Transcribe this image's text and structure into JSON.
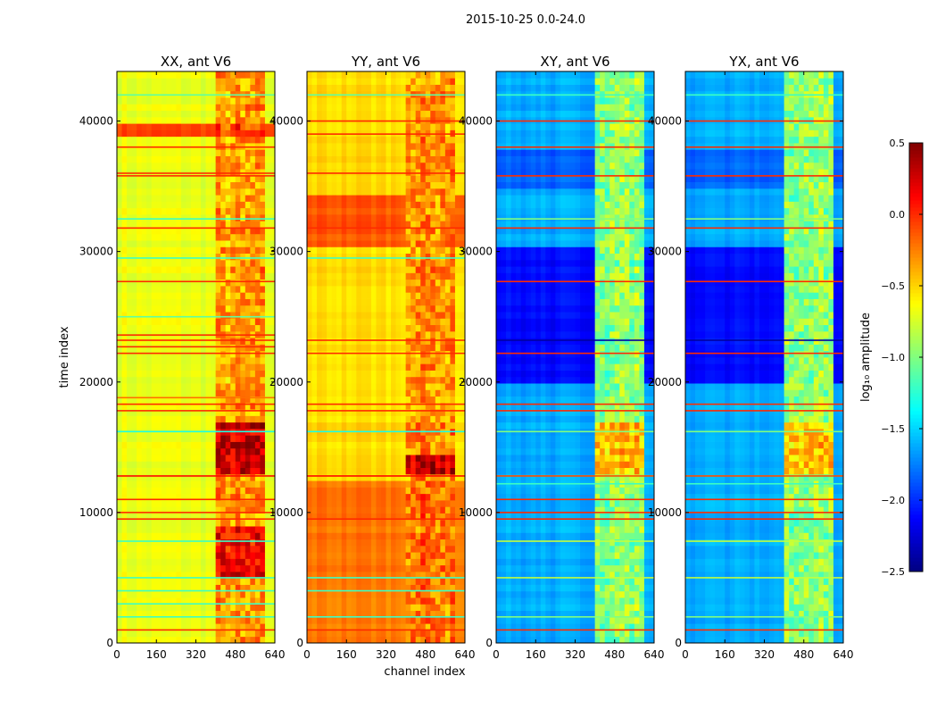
{
  "chart_data": {
    "type": "heatmap",
    "title": "2015-10-25 0.0-24.0",
    "xlabel": "channel index",
    "ylabel": "time index",
    "xlim": [
      0,
      640
    ],
    "ylim": [
      0,
      43800
    ],
    "xticks": [
      "0",
      "160",
      "320",
      "480",
      "640"
    ],
    "xtick_values": [
      0,
      160,
      320,
      480,
      640
    ],
    "yticks": [
      "0",
      "10000",
      "20000",
      "30000",
      "40000"
    ],
    "ytick_values": [
      0,
      10000,
      20000,
      30000,
      40000
    ],
    "colorbar": {
      "label": "log₁₀ amplitude",
      "range": [
        -2.5,
        0.5
      ],
      "ticks": [
        "0.5",
        "0.0",
        "−0.5",
        "−1.0",
        "−1.5",
        "−2.0",
        "−2.5"
      ],
      "tick_values": [
        0.5,
        0.0,
        -0.5,
        -1.0,
        -1.5,
        -2.0,
        -2.5
      ],
      "colormap": "jet"
    },
    "panels": [
      {
        "title": "XX, ant V6",
        "base": -0.68,
        "regions": [
          {
            "t": [
              0,
              43800
            ],
            "ch": [
              400,
              600
            ],
            "v": -0.35
          },
          {
            "t": [
              5000,
              9000
            ],
            "ch": [
              400,
              600
            ],
            "v": 0.1
          },
          {
            "t": [
              13000,
              17000
            ],
            "ch": [
              400,
              600
            ],
            "v": 0.25
          },
          {
            "t": [
              38800,
              40000
            ],
            "ch": [
              0,
              640
            ],
            "v": -0.05
          }
        ],
        "lines": [
          {
            "t": 1000,
            "v": 0.0
          },
          {
            "t": 9500,
            "v": 0.0
          },
          {
            "t": 10000,
            "v": 0.0
          },
          {
            "t": 11000,
            "v": 0.0
          },
          {
            "t": 12800,
            "v": 0.1
          },
          {
            "t": 17800,
            "v": 0.0
          },
          {
            "t": 18300,
            "v": 0.0
          },
          {
            "t": 18800,
            "v": -0.2
          },
          {
            "t": 22200,
            "v": 0.0
          },
          {
            "t": 22700,
            "v": 0.0
          },
          {
            "t": 23200,
            "v": 0.0
          },
          {
            "t": 23600,
            "v": 0.0
          },
          {
            "t": 27700,
            "v": 0.0
          },
          {
            "t": 31800,
            "v": 0.0
          },
          {
            "t": 35800,
            "v": 0.0
          },
          {
            "t": 36000,
            "v": 0.0
          },
          {
            "t": 38000,
            "v": 0.0
          },
          {
            "t": 2000,
            "v": -1.2
          },
          {
            "t": 3000,
            "v": -1.2
          },
          {
            "t": 4000,
            "v": -1.2
          },
          {
            "t": 5000,
            "v": -1.2
          },
          {
            "t": 7800,
            "v": -1.2
          },
          {
            "t": 16200,
            "v": -1.3
          },
          {
            "t": 25000,
            "v": -1.1
          },
          {
            "t": 29500,
            "v": -1.2
          },
          {
            "t": 32500,
            "v": -1.2
          },
          {
            "t": 42000,
            "v": -1.1
          }
        ]
      },
      {
        "title": "YY, ant V6",
        "base": -0.52,
        "regions": [
          {
            "t": [
              0,
              12500
            ],
            "ch": [
              0,
              640
            ],
            "v": -0.22
          },
          {
            "t": [
              30500,
              34500
            ],
            "ch": [
              0,
              640
            ],
            "v": -0.12
          },
          {
            "t": [
              12500,
              43800
            ],
            "ch": [
              400,
              600
            ],
            "v": -0.3
          },
          {
            "t": [
              13000,
              14500
            ],
            "ch": [
              400,
              600
            ],
            "v": 0.3
          }
        ],
        "lines": [
          {
            "t": 1000,
            "v": 0.0
          },
          {
            "t": 9500,
            "v": 0.0
          },
          {
            "t": 12800,
            "v": 0.1
          },
          {
            "t": 17800,
            "v": 0.0
          },
          {
            "t": 18300,
            "v": 0.0
          },
          {
            "t": 22200,
            "v": 0.0
          },
          {
            "t": 23200,
            "v": 0.0
          },
          {
            "t": 31800,
            "v": 0.0
          },
          {
            "t": 36000,
            "v": 0.0
          },
          {
            "t": 39000,
            "v": 0.0
          },
          {
            "t": 40000,
            "v": 0.0
          },
          {
            "t": 2000,
            "v": -1.2
          },
          {
            "t": 4000,
            "v": -1.2
          },
          {
            "t": 5000,
            "v": -1.2
          },
          {
            "t": 16200,
            "v": -1.3
          },
          {
            "t": 29500,
            "v": -1.2
          },
          {
            "t": 42000,
            "v": -1.1
          }
        ]
      },
      {
        "title": "XY, ant V6",
        "base": -1.62,
        "regions": [
          {
            "t": [
              20000,
              30500
            ],
            "ch": [
              0,
              640
            ],
            "v": -2.1
          },
          {
            "t": [
              35000,
              38000
            ],
            "ch": [
              0,
              640
            ],
            "v": -1.85
          },
          {
            "t": [
              0,
              43800
            ],
            "ch": [
              400,
              600
            ],
            "v": -0.95
          },
          {
            "t": [
              13000,
              17000
            ],
            "ch": [
              400,
              600
            ],
            "v": -0.45
          }
        ],
        "lines": [
          {
            "t": 1000,
            "v": 0.0
          },
          {
            "t": 9500,
            "v": 0.0
          },
          {
            "t": 10000,
            "v": 0.0
          },
          {
            "t": 11000,
            "v": 0.0
          },
          {
            "t": 12800,
            "v": -0.1
          },
          {
            "t": 17800,
            "v": 0.0
          },
          {
            "t": 18300,
            "v": 0.0
          },
          {
            "t": 22200,
            "v": 0.0
          },
          {
            "t": 23200,
            "v": -2.4
          },
          {
            "t": 27700,
            "v": 0.0
          },
          {
            "t": 31800,
            "v": 0.0
          },
          {
            "t": 35800,
            "v": 0.0
          },
          {
            "t": 38000,
            "v": 0.0
          },
          {
            "t": 40000,
            "v": 0.0
          },
          {
            "t": 12200,
            "v": -1.2
          },
          {
            "t": 16200,
            "v": -1.0
          },
          {
            "t": 2000,
            "v": -1.0
          },
          {
            "t": 5000,
            "v": -0.8
          },
          {
            "t": 7800,
            "v": -0.8
          },
          {
            "t": 32500,
            "v": -1.0
          },
          {
            "t": 42000,
            "v": -1.2
          }
        ]
      },
      {
        "title": "YX, ant V6",
        "base": -1.62,
        "regions": [
          {
            "t": [
              20000,
              30500
            ],
            "ch": [
              0,
              640
            ],
            "v": -2.1
          },
          {
            "t": [
              35000,
              38000
            ],
            "ch": [
              0,
              640
            ],
            "v": -1.85
          },
          {
            "t": [
              0,
              43800
            ],
            "ch": [
              400,
              600
            ],
            "v": -0.95
          },
          {
            "t": [
              13000,
              17000
            ],
            "ch": [
              400,
              600
            ],
            "v": -0.45
          }
        ],
        "lines": [
          {
            "t": 1000,
            "v": 0.0
          },
          {
            "t": 9500,
            "v": 0.0
          },
          {
            "t": 10000,
            "v": 0.0
          },
          {
            "t": 11000,
            "v": 0.0
          },
          {
            "t": 12800,
            "v": -0.1
          },
          {
            "t": 17800,
            "v": 0.0
          },
          {
            "t": 18300,
            "v": 0.0
          },
          {
            "t": 22200,
            "v": 0.0
          },
          {
            "t": 23200,
            "v": -2.4
          },
          {
            "t": 27700,
            "v": 0.0
          },
          {
            "t": 31800,
            "v": 0.0
          },
          {
            "t": 35800,
            "v": 0.0
          },
          {
            "t": 38000,
            "v": 0.0
          },
          {
            "t": 40000,
            "v": 0.0
          },
          {
            "t": 12200,
            "v": -1.2
          },
          {
            "t": 16200,
            "v": -1.0
          },
          {
            "t": 2000,
            "v": -1.0
          },
          {
            "t": 5000,
            "v": -0.8
          },
          {
            "t": 7800,
            "v": -0.8
          },
          {
            "t": 32500,
            "v": -1.0
          },
          {
            "t": 42000,
            "v": -1.2
          }
        ]
      }
    ]
  }
}
